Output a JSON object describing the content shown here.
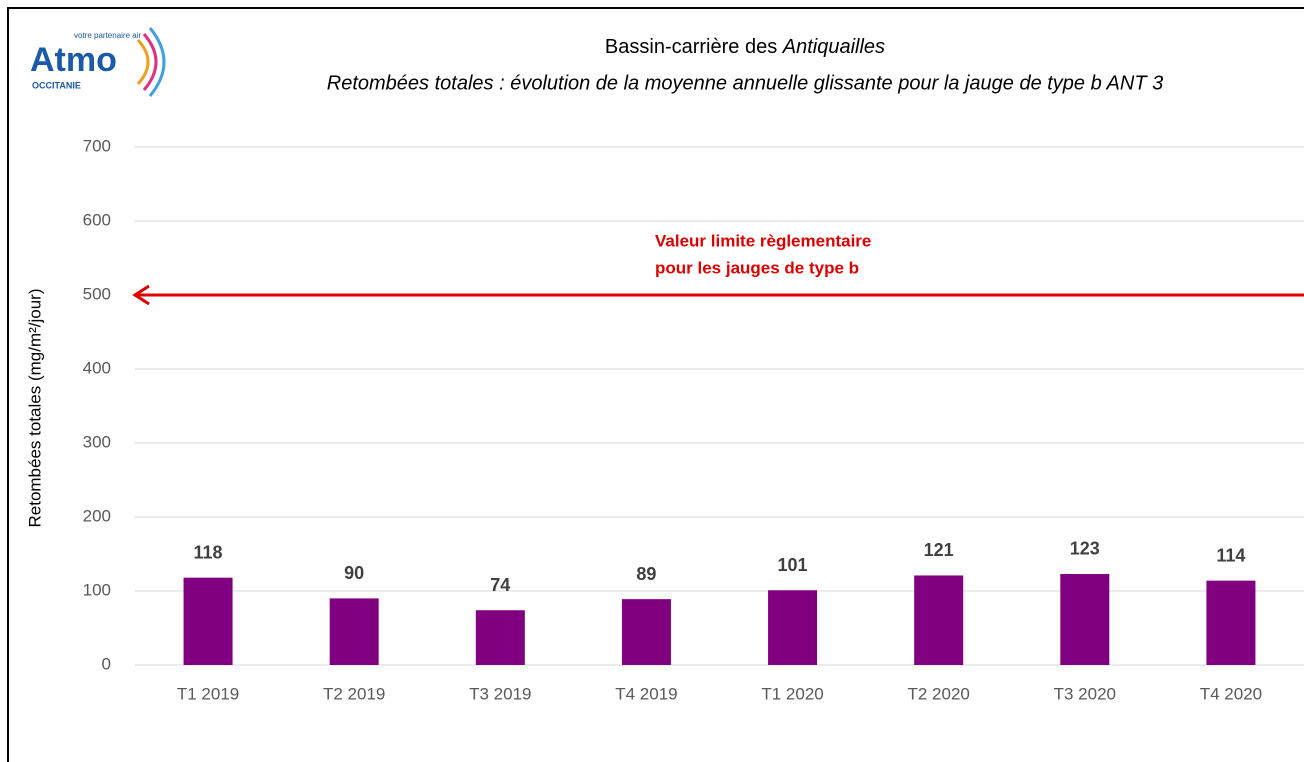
{
  "logo": {
    "name": "Atmo",
    "region": "OCCITANIE",
    "tagline": "votre partenaire air"
  },
  "chart_data": {
    "type": "bar",
    "title": [
      "Bassin-carrière des ",
      "Antiquailles"
    ],
    "subtitle": "Retombées totales : évolution de la moyenne annuelle glissante pour la jauge de type b ANT 3",
    "y_label": "Retombées totales (mg/m²/jour)",
    "categories": [
      "T1 2019",
      "T2 2019",
      "T3 2019",
      "T4 2019",
      "T1 2020",
      "T2 2020",
      "T3 2020",
      "T4 2020"
    ],
    "values": [
      118,
      90,
      74,
      89,
      101,
      121,
      123,
      114
    ],
    "color": "#800080",
    "ylim": [
      0,
      700
    ],
    "yticks": [
      0,
      100,
      200,
      300,
      400,
      500,
      600,
      700
    ],
    "grid": true,
    "reference_line": {
      "value": 500,
      "label": [
        "Valeur limite règlementaire",
        "pour les jauges de type b"
      ],
      "color": "#e00000"
    }
  }
}
